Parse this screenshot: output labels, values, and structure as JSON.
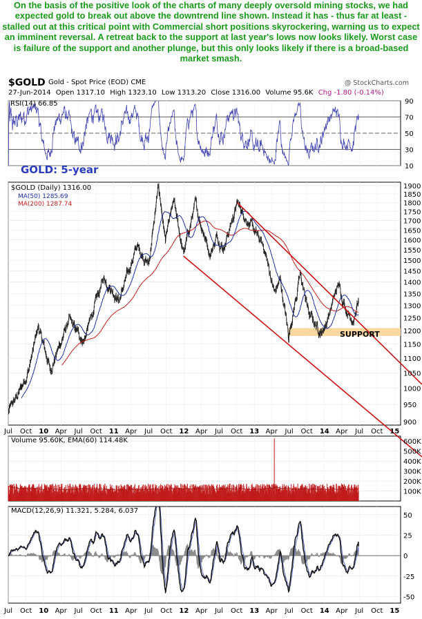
{
  "note": "On the basis of the positive look of the charts of many deeply oversold mining stocks, we had expected gold to break out above the downtrend line shown. Instead it has - thus far at least - stalled out at this critical point with Commercial short positions skyrockering, warning us to expect an imminent reversal. A retreat back to the support at last year's lows now looks likely. Worst case is failure of the support and another plunge, but this only looks likely if there is a broad-based market smash.",
  "header": {
    "symbol": "$GOLD",
    "fullname": "Gold - Spot Price (EOD)  CME",
    "credit": "@ StockCharts.com",
    "date": "27-Jun-2014",
    "open": "Open 1317.10",
    "high": "High 1323.10",
    "low": "Low 1313.20",
    "close": "Close 1316.00",
    "volume": "Volume 95.6K",
    "chg": "Chg -1.80 (-0.14%)"
  },
  "colors": {
    "note_text": "#1a9a1a",
    "price_bar": "#1a1a1a",
    "ma50": "#1c2fa0",
    "ma200": "#c41e1e",
    "trendline": "#cc1111",
    "support_band": "#fbd9a0",
    "rsi_line": "#3b3fae",
    "volume_bars": "#c01b1b",
    "macd_line": "#111111",
    "macd_signal": "#5f6fbf",
    "macd_hist": "#8a8a8a",
    "title_blue": "#2b3bbd",
    "magenta": "#b21b8c"
  },
  "chart_data": [
    {
      "type": "line",
      "panel": "rsi",
      "legend": "RSI(14) 66.85",
      "y_ticks": [
        90,
        70,
        50,
        30,
        10
      ],
      "ylim": [
        10,
        90
      ],
      "reference_lines": [
        70,
        50,
        30
      ],
      "last_value": 66.85
    },
    {
      "type": "candlestick",
      "panel": "price",
      "title": "GOLD: 5-year",
      "legend": [
        "$GOLD (Daily) 1316.00",
        "MA(50) 1285.69",
        "MA(200) 1287.74"
      ],
      "y_scale": "log",
      "ylim": [
        890,
        1920
      ],
      "y_ticks": [
        1900,
        1850,
        1800,
        1750,
        1700,
        1650,
        1600,
        1550,
        1500,
        1450,
        1400,
        1350,
        1300,
        1250,
        1200,
        1150,
        1100,
        1050,
        1000,
        950,
        900
      ],
      "x_ticks": [
        "Jul",
        "Oct",
        "10",
        "Apr",
        "Jul",
        "Oct",
        "11",
        "Apr",
        "Jul",
        "Oct",
        "12",
        "Apr",
        "Jul",
        "Oct",
        "13",
        "Apr",
        "Jul",
        "Oct",
        "14",
        "Apr",
        "Jul",
        "Oct",
        "15"
      ],
      "x_range": [
        "2009-07-01",
        "2015-02-01"
      ],
      "price_path": [
        [
          "2009-07-01",
          928
        ],
        [
          "2009-09-01",
          995
        ],
        [
          "2009-10-15",
          1060
        ],
        [
          "2009-12-03",
          1215
        ],
        [
          "2010-02-05",
          1060
        ],
        [
          "2010-05-12",
          1240
        ],
        [
          "2010-07-28",
          1160
        ],
        [
          "2010-11-09",
          1420
        ],
        [
          "2011-01-28",
          1320
        ],
        [
          "2011-05-01",
          1570
        ],
        [
          "2011-07-01",
          1480
        ],
        [
          "2011-08-22",
          1895
        ],
        [
          "2011-09-26",
          1600
        ],
        [
          "2011-11-08",
          1800
        ],
        [
          "2011-12-29",
          1530
        ],
        [
          "2012-02-28",
          1790
        ],
        [
          "2012-05-16",
          1530
        ],
        [
          "2012-06-20",
          1620
        ],
        [
          "2012-07-24",
          1560
        ],
        [
          "2012-10-04",
          1795
        ],
        [
          "2012-12-28",
          1650
        ],
        [
          "2013-02-20",
          1560
        ],
        [
          "2013-04-16",
          1350
        ],
        [
          "2013-05-15",
          1410
        ],
        [
          "2013-06-28",
          1180
        ],
        [
          "2013-08-27",
          1430
        ],
        [
          "2013-10-15",
          1260
        ],
        [
          "2013-12-19",
          1190
        ],
        [
          "2014-01-20",
          1255
        ],
        [
          "2014-03-14",
          1390
        ],
        [
          "2014-04-25",
          1280
        ],
        [
          "2014-06-03",
          1240
        ],
        [
          "2014-06-27",
          1316
        ]
      ],
      "ma50_last": 1285.69,
      "ma200_last": 1287.74,
      "annotations": [
        {
          "type": "channel_upper",
          "from": [
            "2012-10-04",
            1800
          ],
          "to": [
            "2015-02-01",
            1030
          ]
        },
        {
          "type": "channel_lower",
          "from": [
            "2011-12-29",
            1520
          ],
          "to": [
            "2015-02-01",
            790
          ]
        },
        {
          "type": "support_band",
          "range": [
            1180,
            1210
          ],
          "from": "2013-06-28",
          "label": "SUPPORT"
        }
      ]
    },
    {
      "type": "bar",
      "panel": "volume",
      "legend": "Volume 95.60K, EMA(60) 114.48K",
      "y_ticks": [
        "600K",
        "500K",
        "400K",
        "300K",
        "200K",
        "100K"
      ],
      "ylim": [
        0,
        650000
      ],
      "typical_volume": 120000,
      "spike": {
        "date": "2013-04-15",
        "value": 630000
      },
      "last_value": 95600,
      "ema60_last": 114480
    },
    {
      "type": "line",
      "panel": "macd",
      "legend": "MACD(12,26,9) 11.321, 5.284, 6.037",
      "y_ticks": [
        50,
        25,
        0,
        -25,
        -50
      ],
      "ylim": [
        -58,
        60
      ],
      "last_values": {
        "macd": 11.321,
        "signal": 5.284,
        "histogram": 6.037
      }
    }
  ]
}
